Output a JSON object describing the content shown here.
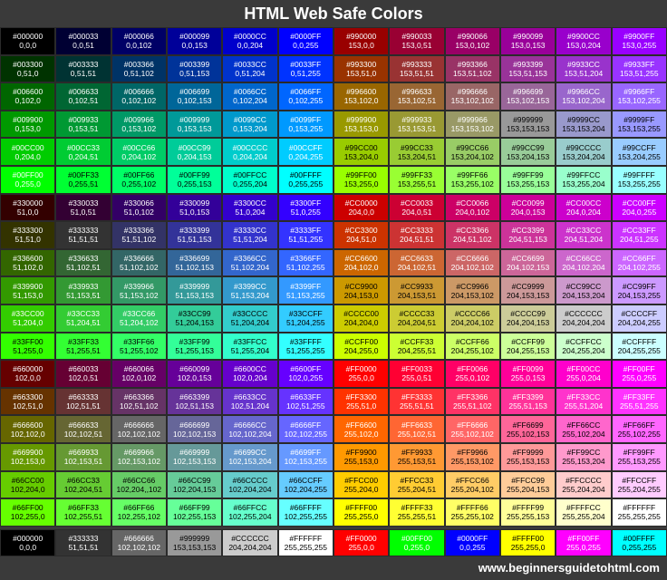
{
  "title": "HTML Web Safe Colors",
  "footer": "www.beginnersguidetohtml.com",
  "rgb_labels_override": {
    "#006600": "0,102,0",
    "#33CC33": "51,204,51",
    "#66CC66": "102,204,,102"
  },
  "rows": [
    [
      "#000000",
      "#000033",
      "#000066",
      "#000099",
      "#0000CC",
      "#0000FF",
      "#990000",
      "#990033",
      "#990066",
      "#990099",
      "#9900CC",
      "#9900FF"
    ],
    [
      "#003300",
      "#003333",
      "#003366",
      "#003399",
      "#0033CC",
      "#0033FF",
      "#993300",
      "#993333",
      "#993366",
      "#993399",
      "#9933CC",
      "#9933FF"
    ],
    [
      "#006600",
      "#006633",
      "#006666",
      "#006699",
      "#0066CC",
      "#0066FF",
      "#996600",
      "#996633",
      "#996666",
      "#996699",
      "#9966CC",
      "#9966FF"
    ],
    [
      "#009900",
      "#009933",
      "#009966",
      "#009999",
      "#0099CC",
      "#0099FF",
      "#999900",
      "#999933",
      "#999966",
      "#999999",
      "#9999CC",
      "#9999FF"
    ],
    [
      "#00CC00",
      "#00CC33",
      "#00CC66",
      "#00CC99",
      "#00CCCC",
      "#00CCFF",
      "#99CC00",
      "#99CC33",
      "#99CC66",
      "#99CC99",
      "#99CCCC",
      "#99CCFF"
    ],
    [
      "#00FF00",
      "#00FF33",
      "#00FF66",
      "#00FF99",
      "#00FFCC",
      "#00FFFF",
      "#99FF00",
      "#99FF33",
      "#99FF66",
      "#99FF99",
      "#99FFCC",
      "#99FFFF"
    ],
    [
      "#330000",
      "#330033",
      "#330066",
      "#330099",
      "#3300CC",
      "#3300FF",
      "#CC0000",
      "#CC0033",
      "#CC0066",
      "#CC0099",
      "#CC00CC",
      "#CC00FF"
    ],
    [
      "#333300",
      "#333333",
      "#333366",
      "#333399",
      "#3333CC",
      "#3333FF",
      "#CC3300",
      "#CC3333",
      "#CC3366",
      "#CC3399",
      "#CC33CC",
      "#CC33FF"
    ],
    [
      "#336600",
      "#336633",
      "#336666",
      "#336699",
      "#3366CC",
      "#3366FF",
      "#CC6600",
      "#CC6633",
      "#CC6666",
      "#CC6699",
      "#CC66CC",
      "#CC66FF"
    ],
    [
      "#339900",
      "#339933",
      "#339966",
      "#339999",
      "#3399CC",
      "#3399FF",
      "#CC9900",
      "#CC9933",
      "#CC9966",
      "#CC9999",
      "#CC99CC",
      "#CC99FF"
    ],
    [
      "#33CC00",
      "#33CC33",
      "#33CC66",
      "#33CC99",
      "#33CCCC",
      "#33CCFF",
      "#CCCC00",
      "#CCCC33",
      "#CCCC66",
      "#CCCC99",
      "#CCCCCC",
      "#CCCCFF"
    ],
    [
      "#33FF00",
      "#33FF33",
      "#33FF66",
      "#33FF99",
      "#33FFCC",
      "#33FFFF",
      "#CCFF00",
      "#CCFF33",
      "#CCFF66",
      "#CCFF99",
      "#CCFFCC",
      "#CCFFFF"
    ],
    [
      "#660000",
      "#660033",
      "#660066",
      "#660099",
      "#6600CC",
      "#6600FF",
      "#FF0000",
      "#FF0033",
      "#FF0066",
      "#FF0099",
      "#FF00CC",
      "#FF00FF"
    ],
    [
      "#663300",
      "#663333",
      "#663366",
      "#663399",
      "#6633CC",
      "#6633FF",
      "#FF3300",
      "#FF3333",
      "#FF3366",
      "#FF3399",
      "#FF33CC",
      "#FF33FF"
    ],
    [
      "#666600",
      "#666633",
      "#666666",
      "#666699",
      "#6666CC",
      "#6666FF",
      "#FF6600",
      "#FF6633",
      "#FF6666",
      "#FF6699",
      "#FF66CC",
      "#FF66FF"
    ],
    [
      "#669900",
      "#669933",
      "#669966",
      "#669999",
      "#6699CC",
      "#6699FF",
      "#FF9900",
      "#FF9933",
      "#FF9966",
      "#FF9999",
      "#FF99CC",
      "#FF99FF"
    ],
    [
      "#66CC00",
      "#66CC33",
      "#66CC66",
      "#66CC99",
      "#66CCCC",
      "#66CCFF",
      "#FFCC00",
      "#FFCC33",
      "#FFCC66",
      "#FFCC99",
      "#FFCCCC",
      "#FFCCFF"
    ],
    [
      "#66FF00",
      "#66FF33",
      "#66FF66",
      "#66FF99",
      "#66FFCC",
      "#66FFFF",
      "#FFFF00",
      "#FFFF33",
      "#FFFF66",
      "#FFFF99",
      "#FFFFCC",
      "#FFFFFF"
    ]
  ],
  "bottom_row": [
    "#000000",
    "#333333",
    "#666666",
    "#999999",
    "#CCCCCC",
    "#FFFFFF",
    "#FF0000",
    "#00FF00",
    "#0000FF",
    "#FFFF00",
    "#FF00FF",
    "#00FFFF"
  ]
}
